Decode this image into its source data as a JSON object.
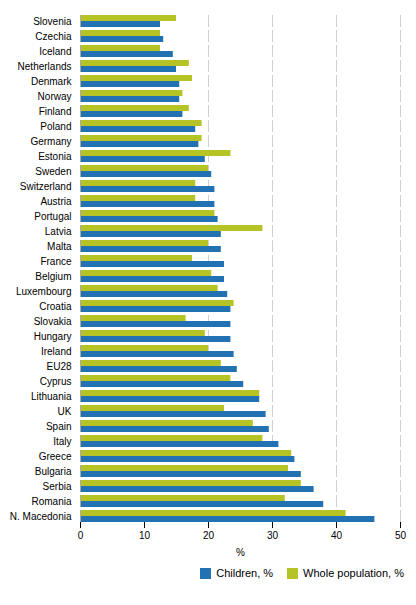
{
  "chart_data": {
    "type": "bar",
    "orientation": "horizontal",
    "categories": [
      "Slovenia",
      "Czechia",
      "Iceland",
      "Netherlands",
      "Denmark",
      "Norway",
      "Finland",
      "Poland",
      "Germany",
      "Estonia",
      "Sweden",
      "Switzerland",
      "Austria",
      "Portugal",
      "Latvia",
      "Malta",
      "France",
      "Belgium",
      "Luxembourg",
      "Croatia",
      "Slovakia",
      "Hungary",
      "Ireland",
      "EU28",
      "Cyprus",
      "Lithuania",
      "UK",
      "Spain",
      "Italy",
      "Greece",
      "Bulgaria",
      "Serbia",
      "Romania",
      "N. Macedonia"
    ],
    "series": [
      {
        "name": "Children, %",
        "color": "#2271b3",
        "values": [
          12.5,
          13.0,
          14.5,
          15.0,
          15.5,
          15.5,
          16.0,
          18.0,
          18.5,
          19.5,
          20.5,
          21.0,
          21.0,
          21.5,
          22.0,
          22.0,
          22.5,
          22.5,
          23.0,
          23.5,
          23.5,
          23.5,
          24.0,
          24.5,
          25.5,
          28.0,
          29.0,
          29.5,
          31.0,
          33.5,
          34.5,
          36.5,
          38.0,
          46.0
        ]
      },
      {
        "name": "Whole population, %",
        "color": "#b5c424",
        "values": [
          15.0,
          12.5,
          12.5,
          17.0,
          17.5,
          16.0,
          17.0,
          19.0,
          19.0,
          23.5,
          20.0,
          18.0,
          18.0,
          21.0,
          28.5,
          20.0,
          17.5,
          20.5,
          21.5,
          24.0,
          16.5,
          19.5,
          20.0,
          22.0,
          23.5,
          28.0,
          22.5,
          27.0,
          28.5,
          33.0,
          32.5,
          34.5,
          32.0,
          41.5
        ]
      }
    ],
    "xlabel": "%",
    "xlim": [
      0,
      50
    ],
    "xticks": [
      0,
      10,
      20,
      30,
      40,
      50
    ],
    "grid": true,
    "legend": "lower right"
  }
}
